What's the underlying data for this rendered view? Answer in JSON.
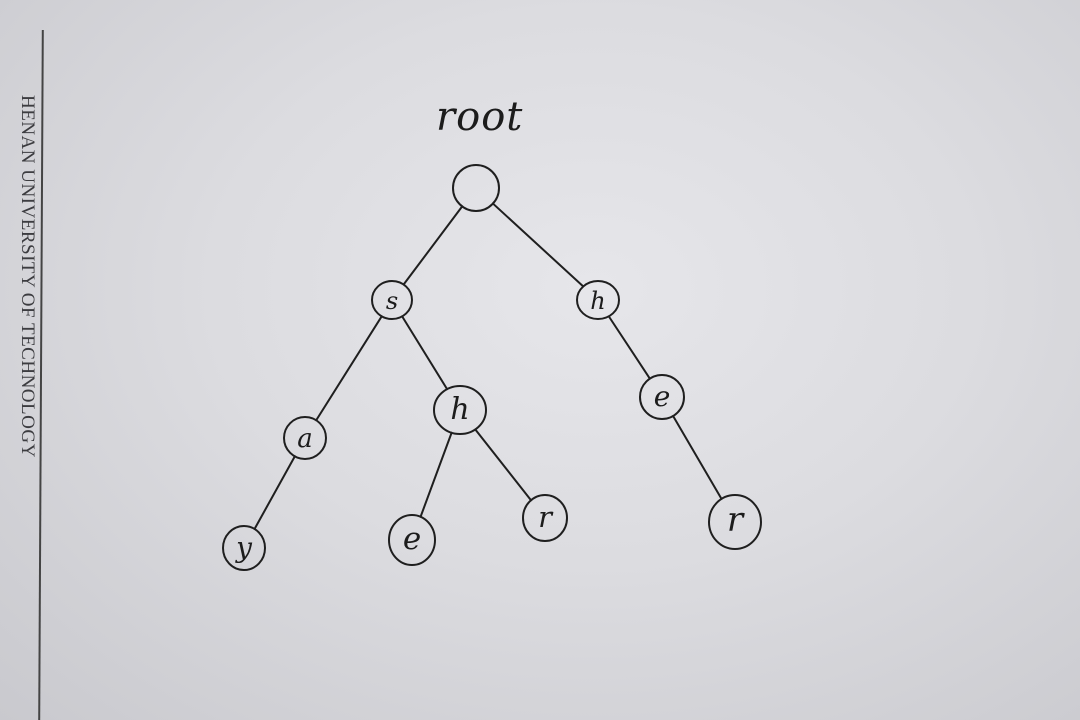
{
  "page": {
    "header": "HENAN UNIVERSITY OF TECHNOLOGY"
  },
  "diagram": {
    "root_label": "root",
    "nodes": [
      {
        "id": "root",
        "label": ""
      },
      {
        "id": "s",
        "label": "s"
      },
      {
        "id": "h-top",
        "label": "h"
      },
      {
        "id": "a",
        "label": "a"
      },
      {
        "id": "h-mid",
        "label": "h"
      },
      {
        "id": "e-right",
        "label": "e"
      },
      {
        "id": "y",
        "label": "y"
      },
      {
        "id": "e-mid",
        "label": "e"
      },
      {
        "id": "r-mid",
        "label": "r"
      },
      {
        "id": "r-right",
        "label": "r"
      }
    ],
    "edges": [
      [
        "root",
        "s"
      ],
      [
        "root",
        "h-top"
      ],
      [
        "s",
        "a"
      ],
      [
        "s",
        "h-mid"
      ],
      [
        "h-top",
        "e-right"
      ],
      [
        "a",
        "y"
      ],
      [
        "h-mid",
        "e-mid"
      ],
      [
        "h-mid",
        "r-mid"
      ],
      [
        "e-right",
        "r-right"
      ]
    ]
  }
}
